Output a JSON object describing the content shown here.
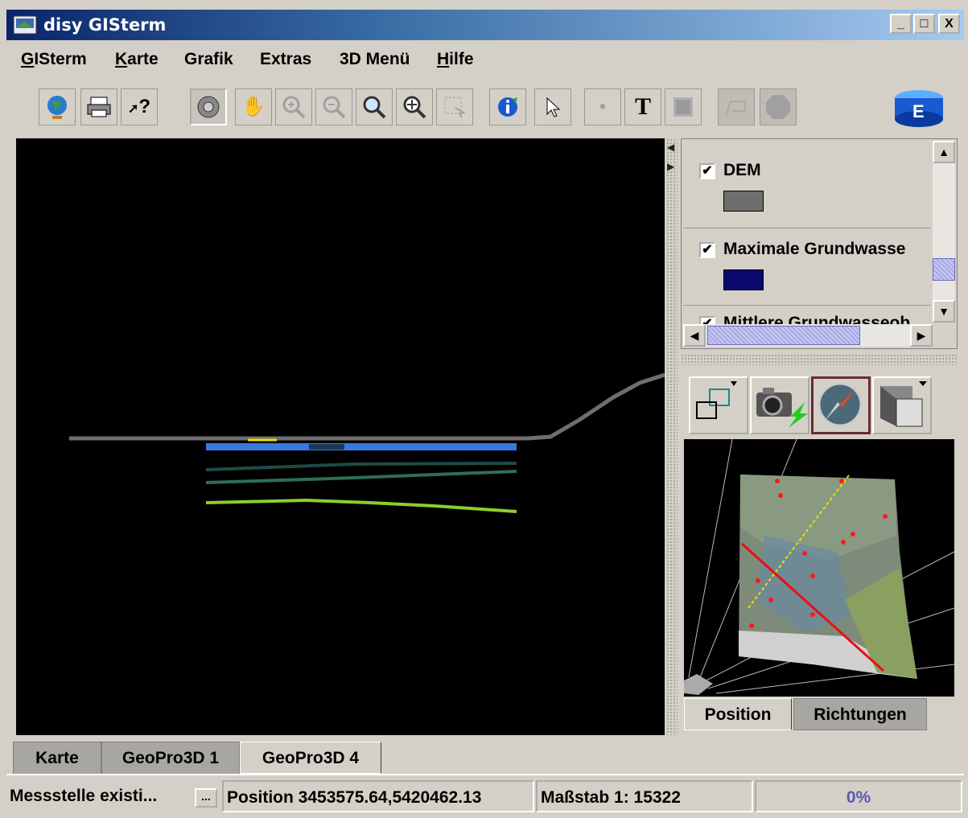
{
  "window": {
    "title": "disy GISterm",
    "controls": [
      "_",
      "□",
      "X"
    ]
  },
  "menu": [
    {
      "label": "GISterm"
    },
    {
      "label": "Karte"
    },
    {
      "label": "Grafik"
    },
    {
      "label": "Extras"
    },
    {
      "label": "3D Menü"
    },
    {
      "label": "Hilfe"
    }
  ],
  "toolbar": {
    "icons": [
      "globe-icon",
      "print-icon",
      "help-pointer-icon",
      "navigate-icon",
      "pan-icon",
      "zoom-in-icon",
      "zoom-out-icon",
      "zoom-magnify-icon",
      "zoom-extent-icon",
      "select-area-icon",
      "info-icon",
      "select-pointer-icon",
      "point-icon",
      "text-icon",
      "texture-icon",
      "flag-icon",
      "stop-icon",
      "3d-logo-icon"
    ],
    "help_label": "?",
    "text_label": "T"
  },
  "legend": {
    "items": [
      {
        "label": "DEM",
        "checked": true,
        "color": "#6e6e6e"
      },
      {
        "label": "Maximale Grundwasse",
        "checked": true,
        "color": "#0a0a6e"
      },
      {
        "label": "Mittlere Grundwasseob",
        "checked": true,
        "color": "#2f6e6e"
      }
    ],
    "check_mark": "✔"
  },
  "controls3d": {
    "icons": [
      "view-frame-icon",
      "camera-icon",
      "compass-icon",
      "cube-view-icon"
    ]
  },
  "side_tabs": [
    {
      "label": "Position",
      "active": true
    },
    {
      "label": "Richtungen",
      "active": false
    }
  ],
  "bottom_tabs": [
    {
      "label": "Karte",
      "active": false
    },
    {
      "label": "GeoPro3D 1",
      "active": false
    },
    {
      "label": "GeoPro3D 4",
      "active": true
    }
  ],
  "status": {
    "message": "Messstelle existi...",
    "more_button": "...",
    "position": "Position 3453575.64,5420462.13",
    "scale": "Maßstab 1: 15322",
    "progress": "0%",
    "progress_value": 0
  },
  "colors": {
    "titlebar_start": "#0a246a",
    "terrain_line": "#6e6e6e",
    "layer_blue": "#3a78e0",
    "layer_green_light": "#8ccf2a",
    "layer_green_dark": "#2f6e58",
    "profile_line": "#e81010"
  }
}
